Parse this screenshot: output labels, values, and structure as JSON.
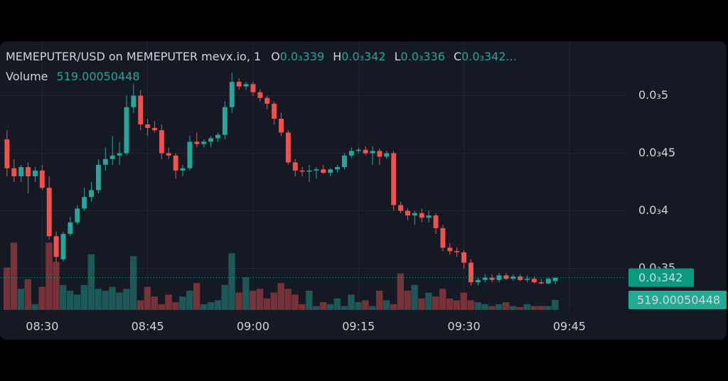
{
  "chart_data": {
    "type": "candlestick",
    "title": "MEMEPUTER/USD on MEMEPUTER mevx.io, 1",
    "ohlc_legend": [
      {
        "key": "O",
        "value": 0.000339,
        "label": "0.0₃339"
      },
      {
        "key": "H",
        "value": 0.000342,
        "label": "0.0₃342"
      },
      {
        "key": "L",
        "value": 0.000336,
        "label": "0.0₃336"
      },
      {
        "key": "C",
        "value": 0.000342,
        "label": "0.0₃342..."
      }
    ],
    "up_color": "#26a69a",
    "down_color": "#ef5350",
    "x": [
      "08:25",
      "08:26",
      "08:27",
      "08:28",
      "08:29",
      "08:30",
      "08:31",
      "08:32",
      "08:33",
      "08:34",
      "08:35",
      "08:36",
      "08:37",
      "08:38",
      "08:39",
      "08:40",
      "08:41",
      "08:42",
      "08:43",
      "08:44",
      "08:45",
      "08:46",
      "08:47",
      "08:48",
      "08:49",
      "08:50",
      "08:51",
      "08:52",
      "08:53",
      "08:54",
      "08:55",
      "08:56",
      "08:57",
      "08:58",
      "08:59",
      "09:00",
      "09:01",
      "09:02",
      "09:03",
      "09:04",
      "09:05",
      "09:06",
      "09:07",
      "09:08",
      "09:09",
      "09:10",
      "09:11",
      "09:12",
      "09:13",
      "09:14",
      "09:15",
      "09:16",
      "09:17",
      "09:18",
      "09:19",
      "09:20",
      "09:21",
      "09:22",
      "09:23",
      "09:24",
      "09:25",
      "09:26",
      "09:27",
      "09:28",
      "09:29",
      "09:30",
      "09:31",
      "09:32",
      "09:33",
      "09:34",
      "09:35",
      "09:36",
      "09:37",
      "09:38",
      "09:39",
      "09:40",
      "09:41",
      "09:42",
      "09:43"
    ],
    "open": [
      0.000462,
      0.000437,
      0.00043,
      0.000438,
      0.00043,
      0.000435,
      0.00042,
      0.000378,
      0.000358,
      0.00038,
      0.00039,
      0.000402,
      0.000412,
      0.000418,
      0.00044,
      0.000445,
      0.000448,
      0.00045,
      0.00049,
      0.0005,
      0.000475,
      0.000472,
      0.00047,
      0.00045,
      0.000448,
      0.000435,
      0.000437,
      0.00046,
      0.000458,
      0.00046,
      0.000463,
      0.000466,
      0.00049,
      0.000512,
      0.000508,
      0.00051,
      0.000503,
      0.000498,
      0.000493,
      0.00048,
      0.000468,
      0.000442,
      0.000435,
      0.000434,
      0.000435,
      0.000436,
      0.000433,
      0.000436,
      0.000438,
      0.000448,
      0.000452,
      0.000453,
      0.00045,
      0.000452,
      0.000447,
      0.00045,
      0.000405,
      0.0004,
      0.000396,
      0.000398,
      0.000394,
      0.000396,
      0.000385,
      0.000368,
      0.000365,
      0.000364,
      0.000355,
      0.000338,
      0.00034,
      0.000342,
      0.00034,
      0.000344,
      0.000341,
      0.000343,
      0.00034,
      0.000341,
      0.000338,
      0.000337,
      0.000339
    ],
    "high": [
      0.00047,
      0.000445,
      0.00044,
      0.000442,
      0.000438,
      0.00044,
      0.00043,
      0.000382,
      0.000382,
      0.000395,
      0.000405,
      0.00042,
      0.000425,
      0.000445,
      0.000455,
      0.000465,
      0.00046,
      0.0005,
      0.00051,
      0.000505,
      0.00048,
      0.000478,
      0.000475,
      0.000455,
      0.00045,
      0.00044,
      0.000465,
      0.000468,
      0.000462,
      0.000465,
      0.000468,
      0.000495,
      0.00052,
      0.000515,
      0.000512,
      0.000512,
      0.000506,
      0.0005,
      0.000495,
      0.000485,
      0.00047,
      0.000445,
      0.000438,
      0.00044,
      0.000438,
      0.00044,
      0.000437,
      0.00044,
      0.00045,
      0.000455,
      0.000455,
      0.000456,
      0.000456,
      0.000454,
      0.000452,
      0.000452,
      0.000408,
      0.000402,
      0.0004,
      0.000402,
      0.0004,
      0.000398,
      0.000388,
      0.000372,
      0.000368,
      0.000366,
      0.000358,
      0.000342,
      0.000345,
      0.000345,
      0.000346,
      0.000346,
      0.000345,
      0.000345,
      0.000344,
      0.000343,
      0.000341,
      0.000342,
      0.000342
    ],
    "low": [
      0.00043,
      0.000425,
      0.000425,
      0.000415,
      0.000425,
      0.000418,
      0.000375,
      0.000355,
      0.000356,
      0.000378,
      0.000388,
      0.0004,
      0.000408,
      0.000415,
      0.000435,
      0.00044,
      0.00044,
      0.000448,
      0.000485,
      0.00047,
      0.000465,
      0.000468,
      0.000445,
      0.000445,
      0.000428,
      0.00043,
      0.000435,
      0.000455,
      0.000455,
      0.000455,
      0.00046,
      0.000462,
      0.000485,
      0.000505,
      0.000505,
      0.0005,
      0.000495,
      0.000488,
      0.000475,
      0.000465,
      0.00044,
      0.00043,
      0.00043,
      0.000425,
      0.000428,
      0.000432,
      0.00043,
      0.000433,
      0.000436,
      0.000446,
      0.00045,
      0.000448,
      0.00044,
      0.00044,
      0.000445,
      0.0004,
      0.000398,
      0.000392,
      0.000388,
      0.00039,
      0.00039,
      0.00038,
      0.000365,
      0.000362,
      0.00036,
      0.00035,
      0.000335,
      0.000335,
      0.000338,
      0.000338,
      0.000338,
      0.00034,
      0.000339,
      0.000339,
      0.000338,
      0.000337,
      0.000336,
      0.000336,
      0.000336
    ],
    "close": [
      0.000437,
      0.00043,
      0.000438,
      0.00043,
      0.000435,
      0.00042,
      0.000378,
      0.00036,
      0.00038,
      0.00039,
      0.000402,
      0.000412,
      0.000418,
      0.00044,
      0.000445,
      0.000448,
      0.00045,
      0.00049,
      0.0005,
      0.000475,
      0.000472,
      0.00047,
      0.00045,
      0.000448,
      0.000435,
      0.000437,
      0.00046,
      0.000458,
      0.00046,
      0.000463,
      0.000466,
      0.00049,
      0.000512,
      0.000508,
      0.00051,
      0.000503,
      0.000498,
      0.000493,
      0.00048,
      0.000468,
      0.000442,
      0.000435,
      0.000434,
      0.000435,
      0.000436,
      0.000433,
      0.000436,
      0.000438,
      0.000448,
      0.000452,
      0.000453,
      0.00045,
      0.000452,
      0.000447,
      0.00045,
      0.000405,
      0.0004,
      0.000396,
      0.000398,
      0.000394,
      0.000396,
      0.000385,
      0.000368,
      0.000365,
      0.000364,
      0.000355,
      0.000338,
      0.00034,
      0.000342,
      0.00034,
      0.000344,
      0.000341,
      0.000343,
      0.00034,
      0.000341,
      0.000338,
      0.000337,
      0.000341,
      0.000342
    ],
    "volume": {
      "name": "Volume",
      "ylim": [
        0,
        3700
      ],
      "values": [
        2200,
        3500,
        1100,
        1600,
        300,
        1200,
        3500,
        2500,
        1300,
        1000,
        800,
        1300,
        2900,
        1100,
        1000,
        1200,
        900,
        1100,
        2800,
        500,
        1200,
        700,
        300,
        800,
        400,
        700,
        1000,
        1400,
        300,
        400,
        500,
        1300,
        2950,
        900,
        1700,
        1000,
        1100,
        600,
        900,
        1400,
        1100,
        800,
        300,
        1000,
        200,
        400,
        300,
        600,
        200,
        800,
        400,
        500,
        200,
        1000,
        500,
        300,
        1900,
        1000,
        1300,
        600,
        900,
        700,
        1100,
        600,
        500,
        900,
        500,
        400,
        300,
        200,
        300,
        400,
        200,
        150,
        300,
        200,
        200,
        200,
        519.00050448
      ]
    },
    "last_price": {
      "value": 0.000342,
      "label": "0.0₃342"
    },
    "xlim": [
      "08:24",
      "09:53"
    ],
    "xticks": [
      "08:30",
      "08:45",
      "09:00",
      "09:15",
      "09:30",
      "09:45"
    ],
    "ylim": [
      0.000314,
      0.000546
    ],
    "yticks": [
      {
        "value": 0.00035,
        "label": "0.0₃35"
      },
      {
        "value": 0.0004,
        "label": "0.0₃4"
      },
      {
        "value": 0.00045,
        "label": "0.0₃45"
      },
      {
        "value": 0.0005,
        "label": "0.0₃5"
      }
    ],
    "grid": true
  }
}
